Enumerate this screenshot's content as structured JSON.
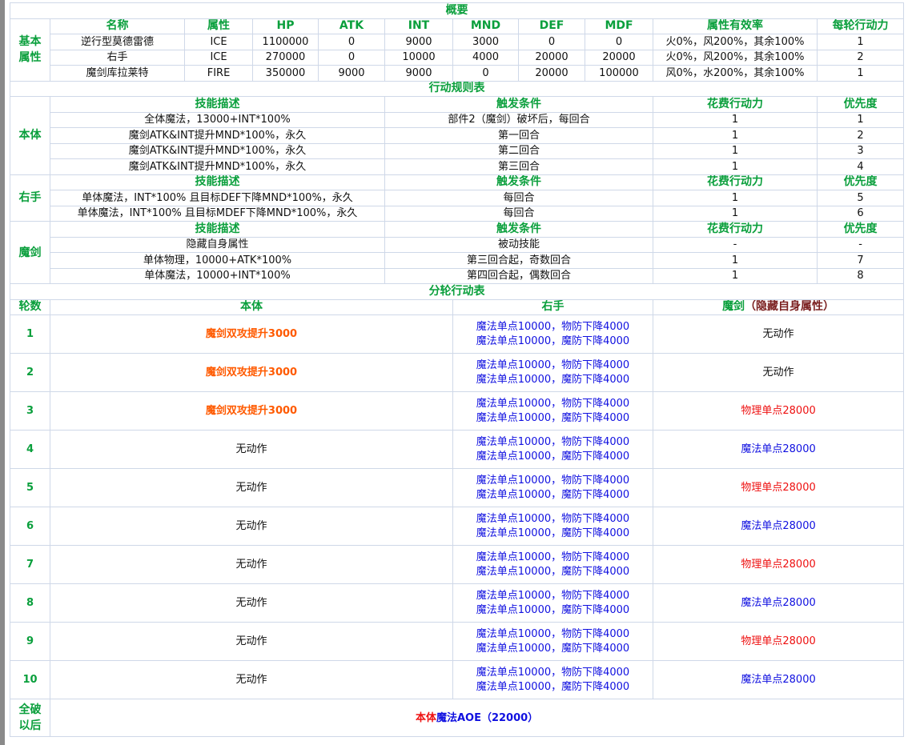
{
  "overview": {
    "title": "概要",
    "row_label": "基本属性",
    "headers": [
      "名称",
      "属性",
      "HP",
      "ATK",
      "INT",
      "MND",
      "DEF",
      "MDF",
      "属性有效率",
      "每轮行动力"
    ],
    "rows": [
      [
        "逆行型莫德雷德",
        "ICE",
        "1100000",
        "0",
        "9000",
        "3000",
        "0",
        "0",
        "火0%，风200%，其余100%",
        "1"
      ],
      [
        "右手",
        "ICE",
        "270000",
        "0",
        "10000",
        "4000",
        "20000",
        "20000",
        "火0%，风200%，其余100%",
        "2"
      ],
      [
        "魔剑库拉莱特",
        "FIRE",
        "350000",
        "9000",
        "9000",
        "0",
        "20000",
        "100000",
        "风0%，水200%，其余100%",
        "1"
      ]
    ]
  },
  "rules": {
    "title": "行动规则表",
    "headers": [
      "技能描述",
      "触发条件",
      "花费行动力",
      "优先度"
    ],
    "groups": [
      {
        "label": "本体",
        "rows": [
          [
            "全体魔法，13000+INT*100%",
            "部件2（魔剑）破坏后，每回合",
            "1",
            "1"
          ],
          [
            "魔剑ATK&INT提升MND*100%，永久",
            "第一回合",
            "1",
            "2"
          ],
          [
            "魔剑ATK&INT提升MND*100%，永久",
            "第二回合",
            "1",
            "3"
          ],
          [
            "魔剑ATK&INT提升MND*100%，永久",
            "第三回合",
            "1",
            "4"
          ]
        ]
      },
      {
        "label": "右手",
        "rows": [
          [
            "单体魔法，INT*100% 且目标DEF下降MND*100%，永久",
            "每回合",
            "1",
            "5"
          ],
          [
            "单体魔法，INT*100% 且目标MDEF下降MND*100%，永久",
            "每回合",
            "1",
            "6"
          ]
        ]
      },
      {
        "label": "魔剑",
        "rows": [
          [
            "隐藏自身属性",
            "被动技能",
            "-",
            "-"
          ],
          [
            "单体物理，10000+ATK*100%",
            "第三回合起，奇数回合",
            "1",
            "7"
          ],
          [
            "单体魔法，10000+INT*100%",
            "第四回合起，偶数回合",
            "1",
            "8"
          ]
        ]
      }
    ]
  },
  "rounds": {
    "title": "分轮行动表",
    "headers": {
      "round": "轮数",
      "body": "本体",
      "hand": "右手",
      "sword": "魔剑",
      "sword_note": "（隐藏自身属性）"
    },
    "hand_lines": [
      "魔法单点10000，物防下降4000",
      "魔法单点10000，魔防下降4000"
    ],
    "rows": [
      {
        "n": "1",
        "body": "魔剑双攻提升3000",
        "body_color": "orange",
        "sword": "无动作",
        "sword_color": "black"
      },
      {
        "n": "2",
        "body": "魔剑双攻提升3000",
        "body_color": "orange",
        "sword": "无动作",
        "sword_color": "black"
      },
      {
        "n": "3",
        "body": "魔剑双攻提升3000",
        "body_color": "orange",
        "sword": "物理单点28000",
        "sword_color": "red"
      },
      {
        "n": "4",
        "body": "无动作",
        "body_color": "black",
        "sword": "魔法单点28000",
        "sword_color": "blue"
      },
      {
        "n": "5",
        "body": "无动作",
        "body_color": "black",
        "sword": "物理单点28000",
        "sword_color": "red"
      },
      {
        "n": "6",
        "body": "无动作",
        "body_color": "black",
        "sword": "魔法单点28000",
        "sword_color": "blue"
      },
      {
        "n": "7",
        "body": "无动作",
        "body_color": "black",
        "sword": "物理单点28000",
        "sword_color": "red"
      },
      {
        "n": "8",
        "body": "无动作",
        "body_color": "black",
        "sword": "魔法单点28000",
        "sword_color": "blue"
      },
      {
        "n": "9",
        "body": "无动作",
        "body_color": "black",
        "sword": "物理单点28000",
        "sword_color": "red"
      },
      {
        "n": "10",
        "body": "无动作",
        "body_color": "black",
        "sword": "魔法单点28000",
        "sword_color": "blue"
      }
    ],
    "final": {
      "label": "全破以后",
      "part1": "本体",
      "part2": "魔法AOE（22000）"
    }
  },
  "colors": {
    "header_green": "#0a9f3c",
    "orange": "#ff5a00",
    "blue": "#1010e0",
    "red": "#ee1010",
    "brown": "#7a1f1f",
    "border": "#cfd8e8"
  }
}
